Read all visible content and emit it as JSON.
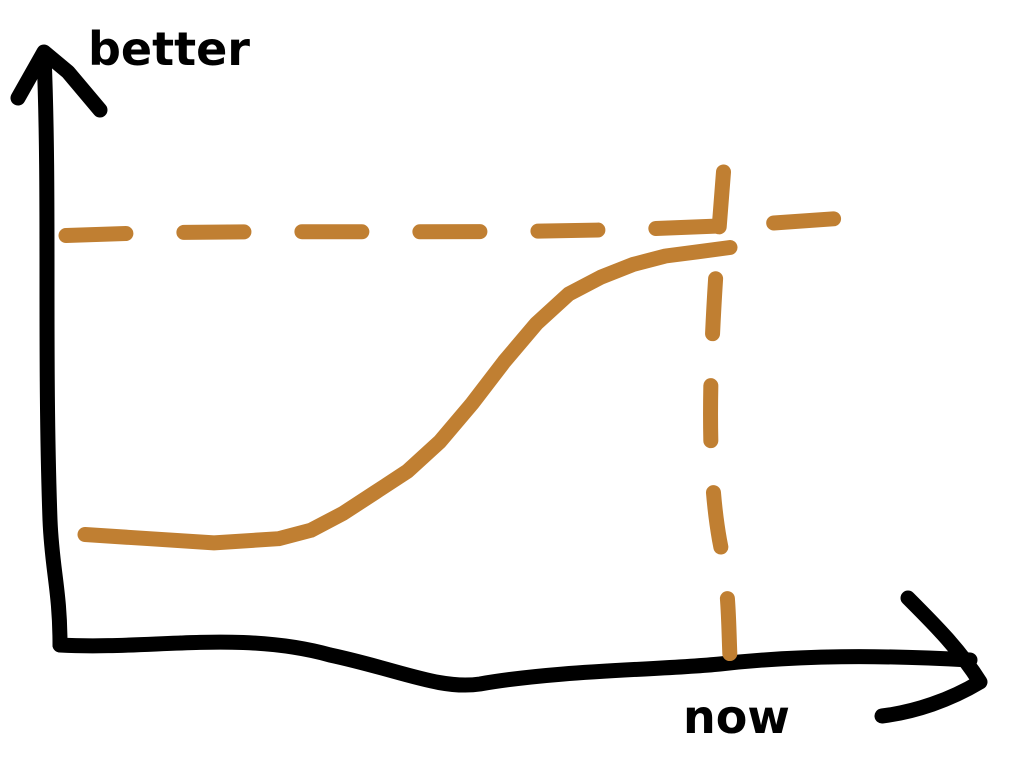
{
  "chart_data": {
    "type": "line",
    "title": "",
    "ylabel": "better",
    "xlabel": "",
    "x_marker_label": "now",
    "grid": false,
    "xlim": [
      0,
      100
    ],
    "ylim": [
      0,
      100
    ],
    "series": [
      {
        "x": [
          0,
          10,
          20,
          30,
          35,
          40,
          45,
          50,
          55,
          60,
          65,
          70,
          75,
          80,
          85,
          90,
          95,
          100
        ],
        "y": [
          25,
          24,
          23,
          24,
          26,
          30,
          35,
          40,
          47,
          56,
          66,
          75,
          82,
          86,
          89,
          91,
          92,
          93
        ]
      }
    ],
    "reference_lines": {
      "horizontal_y": 93,
      "vertical_x": 99
    },
    "colors": {
      "axes": "#000000",
      "curve": "#c07f32",
      "reference": "#c07f32"
    }
  }
}
